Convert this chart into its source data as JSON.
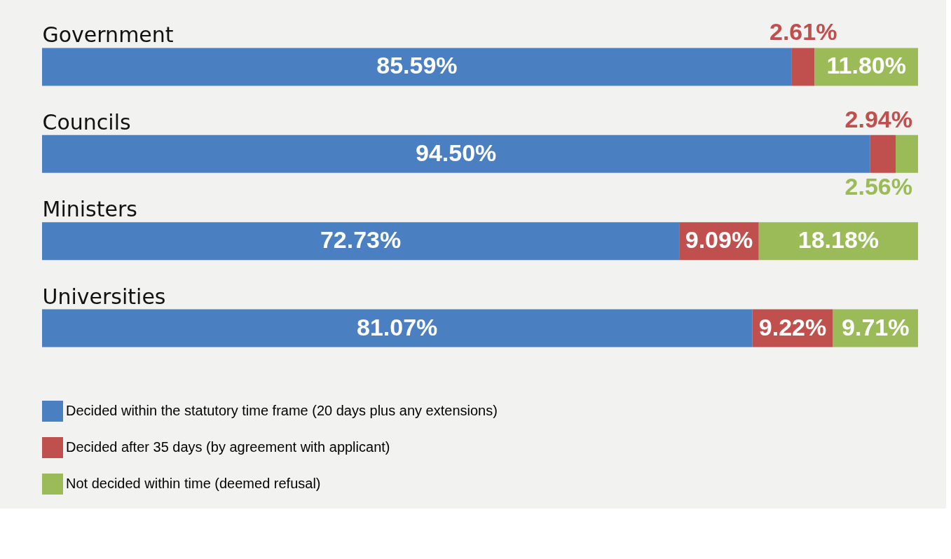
{
  "chart_data": {
    "type": "bar",
    "orientation": "horizontal",
    "stacked": true,
    "categories": [
      "Government",
      "Councils",
      "Ministers",
      "Universities"
    ],
    "xlim": [
      0,
      100
    ],
    "series": [
      {
        "name": "Decided within the statutory time frame (20 days plus any extensions)",
        "color": "#4a7fc1",
        "values": [
          85.59,
          94.5,
          72.73,
          81.07
        ],
        "value_labels": [
          "85.59%",
          "94.50%",
          "72.73%",
          "81.07%"
        ]
      },
      {
        "name": "Decided after 35 days (by agreement with applicant)",
        "color": "#c0504d",
        "values": [
          2.61,
          2.94,
          9.09,
          9.22
        ],
        "value_labels": [
          "2.61%",
          "2.94%",
          "9.09%",
          "9.22%"
        ]
      },
      {
        "name": "Not decided within time (deemed refusal)",
        "color": "#9bbb59",
        "values": [
          11.8,
          2.56,
          18.18,
          9.71
        ],
        "value_labels": [
          "11.80%",
          "2.56%",
          "18.18%",
          "9.71%"
        ]
      }
    ],
    "legend": "bottom",
    "grid": false,
    "tick_labels": "y"
  }
}
